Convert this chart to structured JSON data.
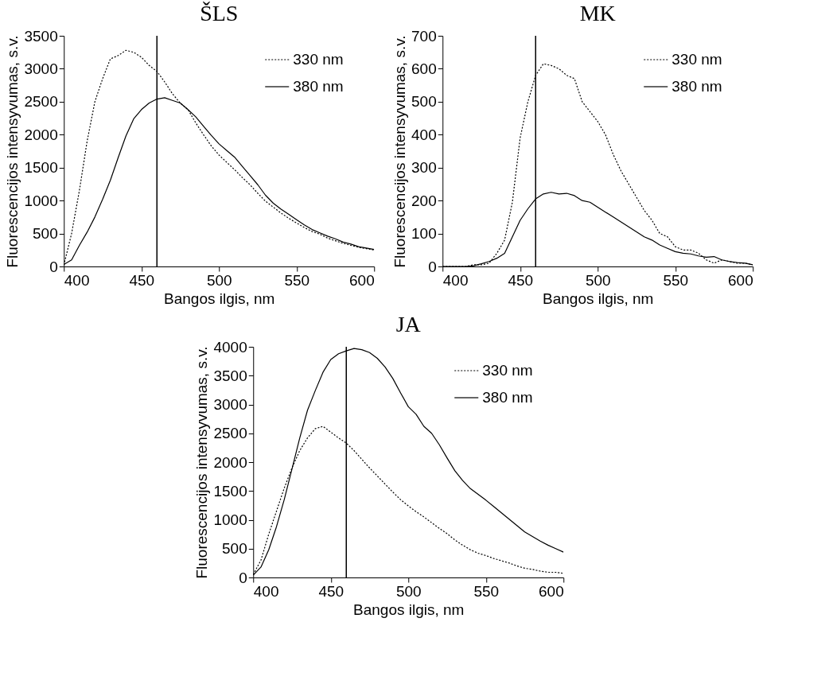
{
  "chart_data": [
    {
      "type": "line",
      "title": "ŠLS",
      "xlabel": "Bangos ilgis, nm",
      "ylabel": "Fluorescencijos intensyvumas, s.v.",
      "xlim": [
        400,
        600
      ],
      "xticks": [
        400,
        450,
        500,
        550,
        600
      ],
      "ylim": [
        0,
        3500
      ],
      "yticks": [
        0,
        500,
        1000,
        1500,
        2000,
        2500,
        3000,
        3500
      ],
      "grid": false,
      "legend": "top right",
      "x": [
        400,
        405,
        410,
        415,
        420,
        425,
        430,
        435,
        440,
        445,
        450,
        455,
        460,
        465,
        470,
        475,
        480,
        485,
        490,
        495,
        500,
        505,
        510,
        515,
        520,
        525,
        530,
        535,
        540,
        545,
        550,
        555,
        560,
        565,
        570,
        575,
        580,
        585,
        590,
        595,
        600
      ],
      "series": [
        {
          "name": "330 nm",
          "color": "#000000",
          "line_style": "dotted",
          "values": [
            20,
            500,
            1150,
            1900,
            2500,
            2850,
            3150,
            3200,
            3280,
            3250,
            3175,
            3050,
            2960,
            2800,
            2620,
            2480,
            2380,
            2180,
            2000,
            1830,
            1690,
            1580,
            1470,
            1350,
            1240,
            1110,
            990,
            900,
            810,
            730,
            660,
            590,
            530,
            490,
            430,
            390,
            350,
            320,
            290,
            270,
            250
          ]
        },
        {
          "name": "380 nm",
          "color": "#000000",
          "line_style": "solid",
          "values": [
            30,
            100,
            320,
            520,
            750,
            1020,
            1310,
            1650,
            1980,
            2240,
            2380,
            2480,
            2540,
            2560,
            2520,
            2480,
            2380,
            2270,
            2130,
            1990,
            1860,
            1760,
            1660,
            1520,
            1380,
            1240,
            1080,
            960,
            870,
            790,
            710,
            630,
            560,
            510,
            460,
            420,
            370,
            340,
            300,
            280,
            258
          ]
        }
      ],
      "ref_lines": [
        {
          "axis": "x",
          "value": 460
        }
      ]
    },
    {
      "type": "line",
      "title": "MK",
      "xlabel": "Bangos ilgis, nm",
      "ylabel": "Fluorescencijos intensyvumas, s.v.",
      "xlim": [
        400,
        600
      ],
      "xticks": [
        400,
        450,
        500,
        550,
        600
      ],
      "ylim": [
        0,
        700
      ],
      "yticks": [
        0,
        100,
        200,
        300,
        400,
        500,
        600,
        700
      ],
      "grid": false,
      "legend": "top right",
      "x": [
        400,
        405,
        410,
        415,
        420,
        425,
        430,
        435,
        440,
        445,
        450,
        455,
        460,
        465,
        470,
        475,
        480,
        485,
        490,
        495,
        500,
        505,
        510,
        515,
        520,
        525,
        530,
        535,
        540,
        545,
        550,
        555,
        560,
        565,
        570,
        575,
        580,
        585,
        590,
        595,
        600
      ],
      "series": [
        {
          "name": "330 nm",
          "color": "#000000",
          "line_style": "dotted",
          "values": [
            0,
            0,
            0,
            0,
            5,
            5,
            10,
            40,
            80,
            195,
            390,
            500,
            580,
            615,
            610,
            600,
            580,
            570,
            500,
            470,
            440,
            400,
            340,
            290,
            250,
            210,
            170,
            140,
            100,
            90,
            60,
            50,
            50,
            40,
            20,
            10,
            20,
            15,
            10,
            10,
            5
          ]
        },
        {
          "name": "380 nm",
          "color": "#000000",
          "line_style": "solid",
          "values": [
            0,
            0,
            0,
            0,
            2,
            8,
            15,
            25,
            40,
            90,
            140,
            175,
            205,
            220,
            225,
            220,
            222,
            215,
            200,
            195,
            180,
            165,
            150,
            135,
            120,
            105,
            90,
            80,
            65,
            55,
            45,
            40,
            38,
            32,
            28,
            30,
            20,
            15,
            12,
            10,
            5
          ]
        }
      ],
      "ref_lines": [
        {
          "axis": "x",
          "value": 460
        }
      ]
    },
    {
      "type": "line",
      "title": "JA",
      "xlabel": "Bangos ilgis, nm",
      "ylabel": "Fluorescencijos intensyvumas, s.v.",
      "xlim": [
        400,
        600
      ],
      "xticks": [
        400,
        450,
        500,
        550,
        600
      ],
      "ylim": [
        0,
        4000
      ],
      "yticks": [
        0,
        500,
        1000,
        1500,
        2000,
        2500,
        3000,
        3500,
        4000
      ],
      "grid": false,
      "legend": "top right",
      "x": [
        400,
        405,
        410,
        415,
        420,
        425,
        430,
        435,
        440,
        445,
        450,
        455,
        460,
        465,
        470,
        475,
        480,
        485,
        490,
        495,
        500,
        505,
        510,
        515,
        520,
        525,
        530,
        535,
        540,
        545,
        550,
        555,
        560,
        565,
        570,
        575,
        580,
        585,
        590,
        595,
        600
      ],
      "series": [
        {
          "name": "330 nm",
          "color": "#000000",
          "line_style": "dotted",
          "values": [
            50,
            300,
            750,
            1150,
            1550,
            1900,
            2200,
            2420,
            2580,
            2620,
            2520,
            2420,
            2330,
            2200,
            2050,
            1900,
            1760,
            1620,
            1480,
            1350,
            1240,
            1140,
            1050,
            950,
            850,
            760,
            650,
            560,
            480,
            420,
            380,
            330,
            290,
            250,
            200,
            160,
            140,
            110,
            90,
            90,
            70
          ]
        },
        {
          "name": "380 nm",
          "color": "#000000",
          "line_style": "solid",
          "values": [
            40,
            180,
            480,
            880,
            1350,
            1880,
            2420,
            2900,
            3240,
            3560,
            3780,
            3880,
            3930,
            3970,
            3950,
            3900,
            3800,
            3650,
            3450,
            3200,
            2960,
            2830,
            2620,
            2500,
            2300,
            2070,
            1850,
            1680,
            1540,
            1440,
            1340,
            1230,
            1120,
            1010,
            900,
            790,
            710,
            630,
            560,
            500,
            440
          ]
        }
      ],
      "ref_lines": [
        {
          "axis": "x",
          "value": 460
        }
      ]
    }
  ]
}
